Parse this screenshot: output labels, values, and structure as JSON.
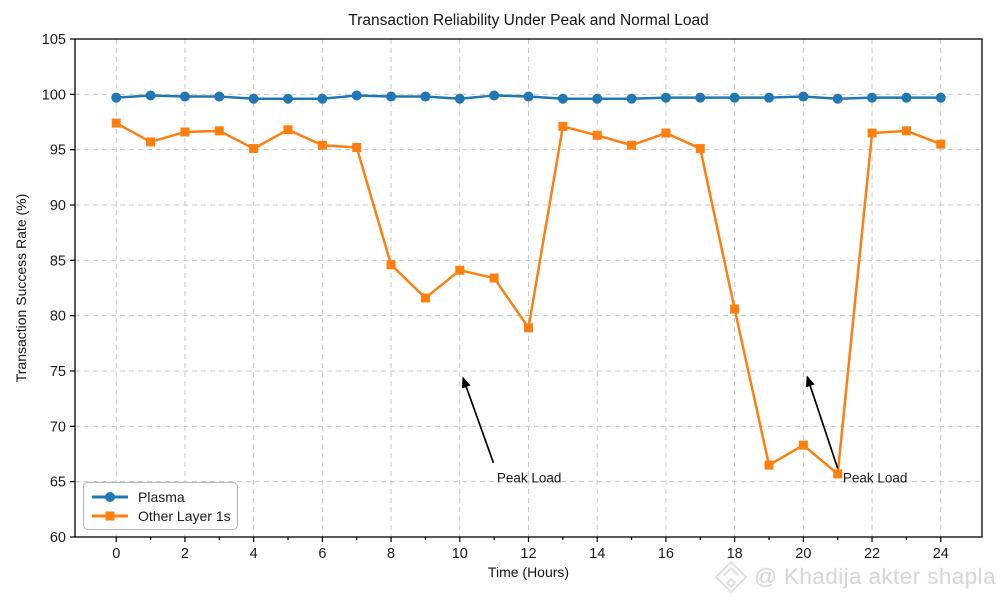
{
  "watermark": {
    "handle": "@ Khadija akter shapla",
    "icon": "diamond-logo-icon",
    "color": "#d7d7d7"
  },
  "chart_data": {
    "type": "line",
    "title": "Transaction Reliability Under Peak and Normal Load",
    "xlabel": "Time (Hours)",
    "ylabel": "Transaction Success Rate (%)",
    "xlim": [
      -1.2,
      25.2
    ],
    "ylim": [
      60,
      105
    ],
    "xticks_major": [
      0,
      2,
      4,
      6,
      8,
      10,
      12,
      14,
      16,
      18,
      20,
      22,
      24
    ],
    "xticks_minor": [
      1,
      3,
      5,
      7,
      9,
      11,
      13,
      15,
      17,
      19,
      21,
      23
    ],
    "yticks": [
      60,
      65,
      70,
      75,
      80,
      85,
      90,
      95,
      100,
      105
    ],
    "grid": "dashed-major-both-axes",
    "grid_color": "#c8c8c8",
    "spine_color": "#000000",
    "legend_position": "lower-left",
    "x": [
      0,
      1,
      2,
      3,
      4,
      5,
      6,
      7,
      8,
      9,
      10,
      11,
      12,
      13,
      14,
      15,
      16,
      17,
      18,
      19,
      20,
      21,
      22,
      23,
      24
    ],
    "series": [
      {
        "name": "Plasma",
        "color": "#1f77b4",
        "marker": "circle",
        "values": [
          99.7,
          99.9,
          99.8,
          99.8,
          99.6,
          99.6,
          99.6,
          99.9,
          99.8,
          99.8,
          99.6,
          99.9,
          99.8,
          99.6,
          99.6,
          99.6,
          99.7,
          99.7,
          99.7,
          99.7,
          99.8,
          99.6,
          99.7,
          99.7,
          99.7
        ]
      },
      {
        "name": "Other Layer 1s",
        "color": "#ff7f0e",
        "marker": "square",
        "values": [
          97.4,
          95.7,
          96.6,
          96.7,
          95.1,
          96.8,
          95.4,
          95.2,
          84.6,
          81.6,
          84.1,
          83.4,
          78.9,
          97.1,
          96.3,
          95.4,
          96.5,
          95.1,
          80.6,
          66.5,
          68.3,
          65.7,
          96.5,
          96.7,
          95.5
        ]
      }
    ],
    "annotations": [
      {
        "label": "Peak Load",
        "text_x": 11.08,
        "text_y": 65.3,
        "tail_x": 10.98,
        "tail_y": 66.7,
        "head_x": 10.08,
        "head_y": 74.5
      },
      {
        "label": "Peak Load",
        "text_x": 21.15,
        "text_y": 65.3,
        "tail_x": 21.0,
        "tail_y": 66.2,
        "head_x": 20.1,
        "head_y": 74.6
      }
    ]
  }
}
